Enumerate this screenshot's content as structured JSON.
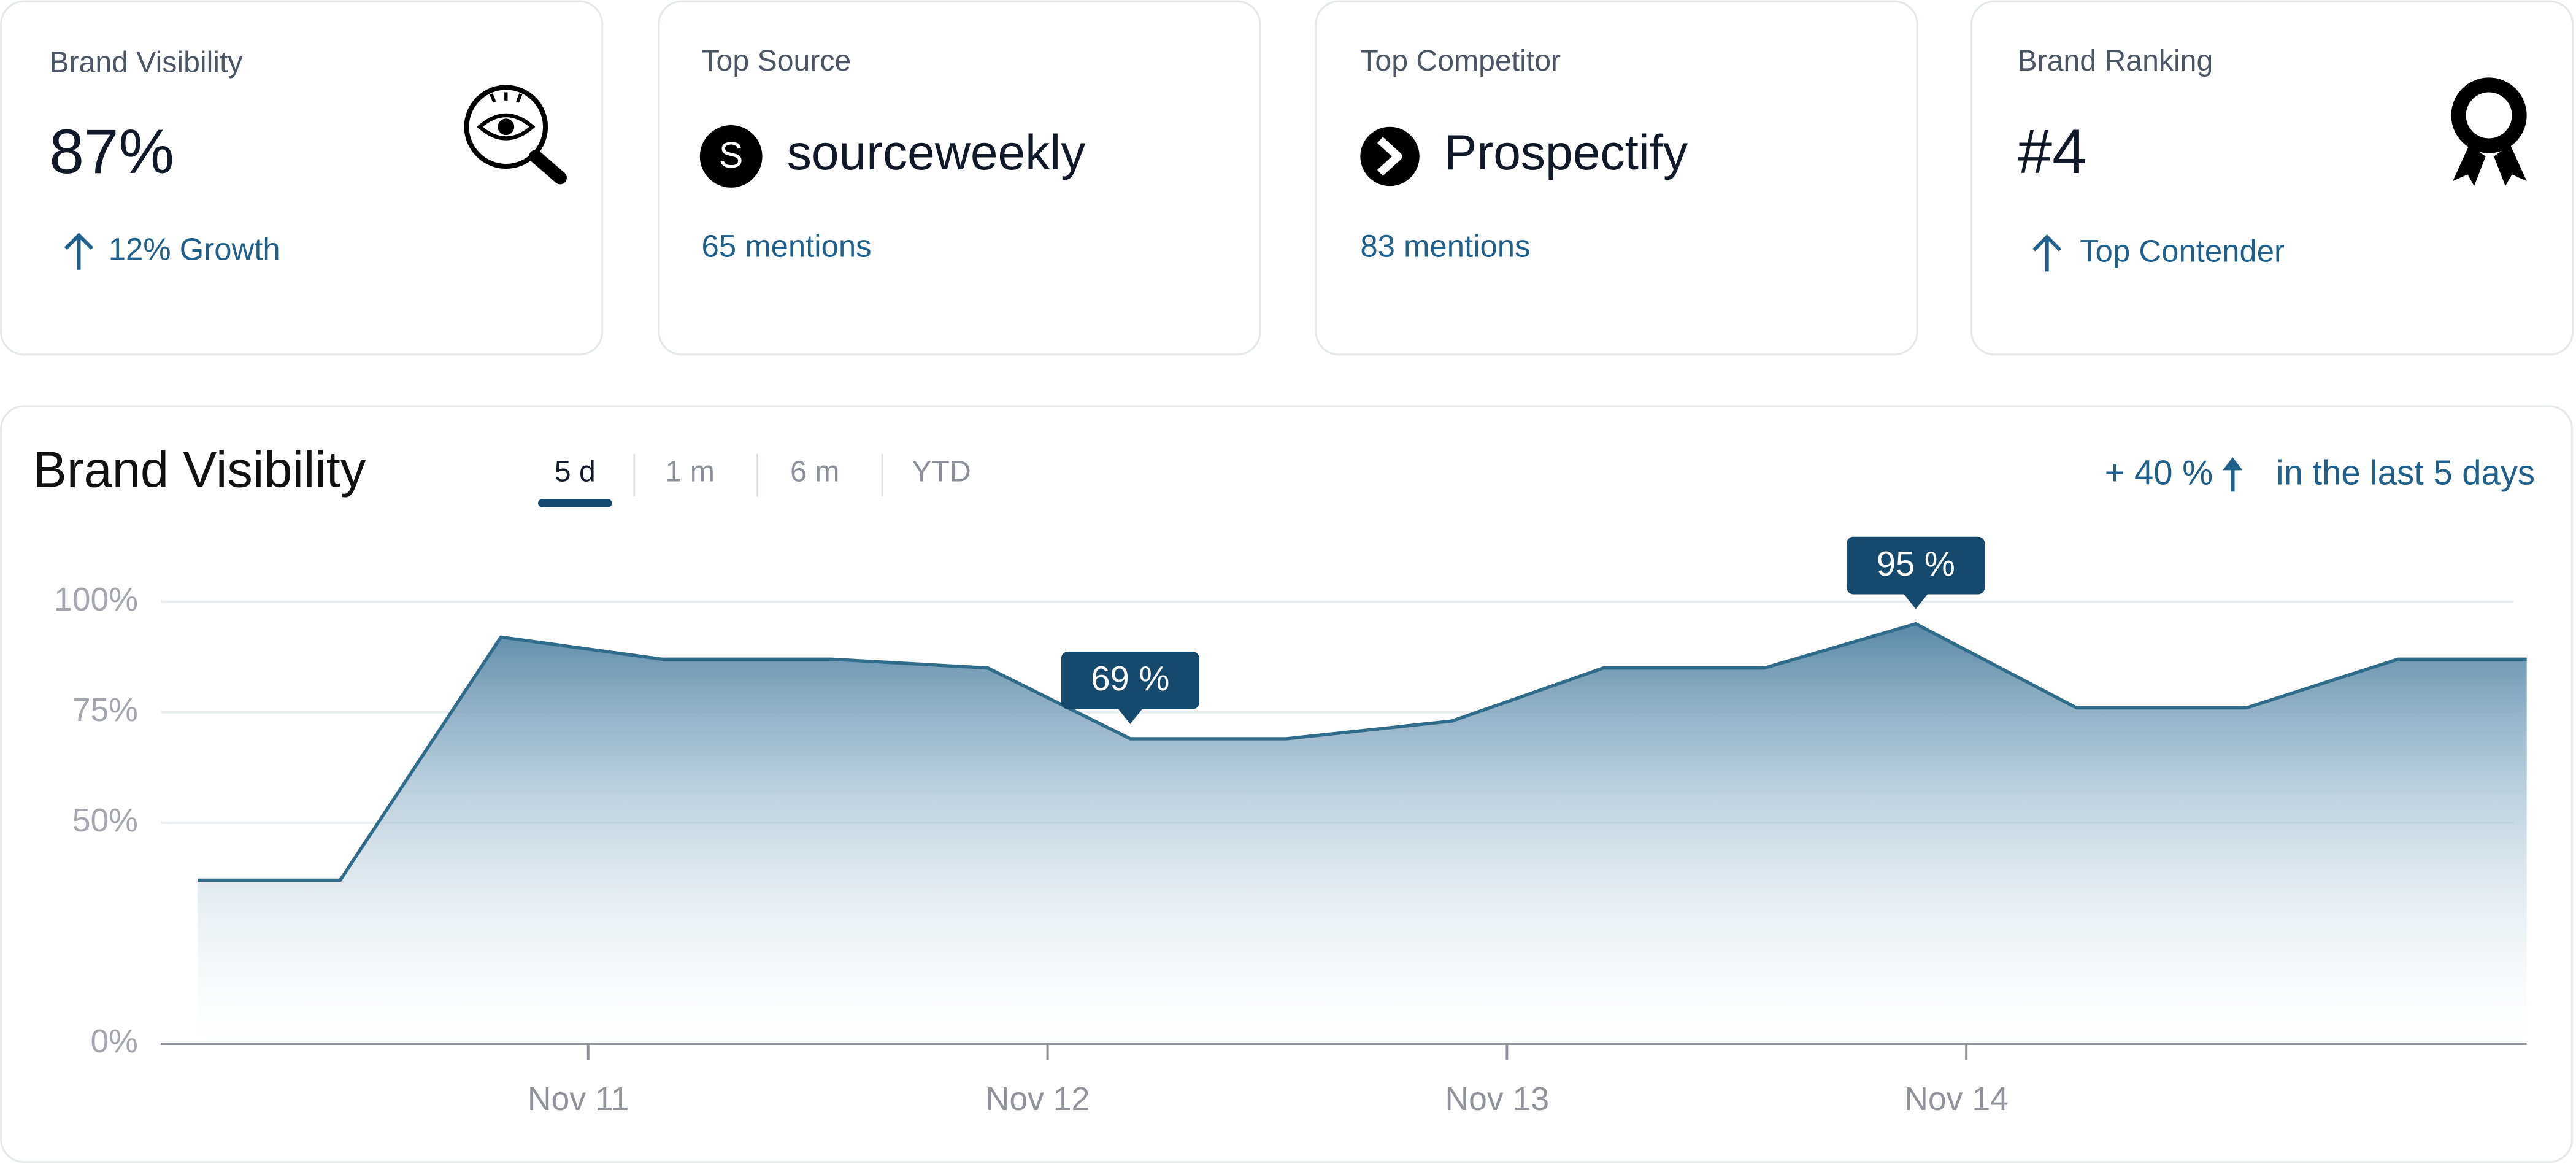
{
  "cards": [
    {
      "label": "Brand Visibility",
      "value": "87%",
      "note": "12% Growth"
    },
    {
      "label": "Top Source",
      "icon_letter": "S",
      "value": "sourceweekly",
      "note": "65 mentions"
    },
    {
      "label": "Top Competitor",
      "value": "Prospectify",
      "note": "83 mentions"
    },
    {
      "label": "Brand Ranking",
      "value": "#4",
      "note": "Top Contender"
    }
  ],
  "chart_data": {
    "type": "area",
    "title": "Brand Visibility",
    "ranges": [
      "5 d",
      "1 m",
      "6 m",
      "YTD"
    ],
    "change": "+ 40 %",
    "change_note": "in the last 5 days",
    "x": [
      10.15,
      10.46,
      10.81,
      11.16,
      11.53,
      11.87,
      12.18,
      12.52,
      12.88,
      13.21,
      13.56,
      13.89,
      14.24,
      14.61,
      14.94,
      15.22
    ],
    "values": [
      37,
      37,
      92,
      87,
      87,
      85,
      69,
      69,
      73,
      85,
      85,
      95,
      76,
      76,
      87,
      87
    ],
    "value_labels": [
      null,
      null,
      null,
      null,
      null,
      null,
      "69 %",
      null,
      null,
      null,
      null,
      "95 %",
      null,
      null,
      null,
      null
    ],
    "color": "#2f6b8a",
    "xlim": [
      10.07,
      15.22
    ],
    "xticks": [
      {
        "value": 11,
        "label": "Nov 11"
      },
      {
        "value": 12,
        "label": "Nov 12"
      },
      {
        "value": 13,
        "label": "Nov 13"
      },
      {
        "value": 14,
        "label": "Nov 14"
      }
    ],
    "ylim": [
      0,
      100
    ],
    "yticks": [
      {
        "value": 0,
        "label": "0%"
      },
      {
        "value": 50,
        "label": "50%"
      },
      {
        "value": 75,
        "label": "75%"
      },
      {
        "value": 100,
        "label": "100%"
      }
    ],
    "grid": true
  }
}
